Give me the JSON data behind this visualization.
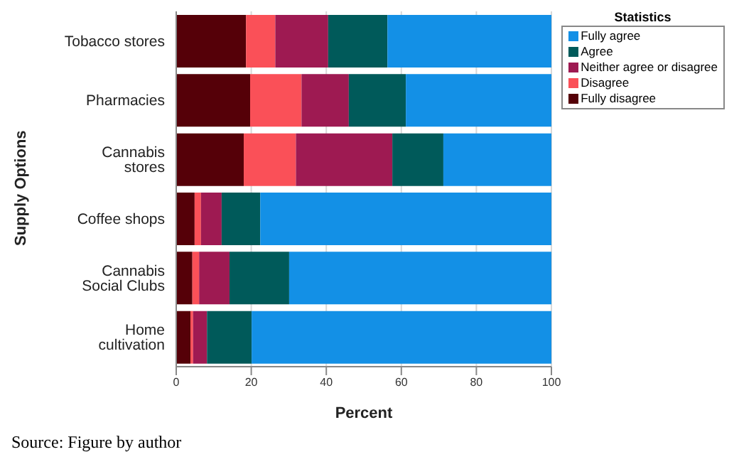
{
  "chart_data": {
    "type": "bar",
    "orientation": "horizontal",
    "stacked": true,
    "categories": [
      "Tobacco stores",
      "Pharmacies",
      "Cannabis stores",
      "Coffee shops",
      "Cannabis Social Clubs",
      "Home cultivation"
    ],
    "series": [
      {
        "name": "Fully disagree",
        "color": "#550008",
        "values": [
          18.6,
          19.7,
          18.0,
          4.9,
          4.3,
          3.8
        ]
      },
      {
        "name": "Disagree",
        "color": "#fa5058",
        "values": [
          7.8,
          13.7,
          13.9,
          1.7,
          1.8,
          0.7
        ]
      },
      {
        "name": "Neither agree or disagree",
        "color": "#9e1a52",
        "values": [
          14.1,
          12.6,
          25.7,
          5.5,
          8.1,
          3.7
        ]
      },
      {
        "name": "Agree",
        "color": "#005a5a",
        "values": [
          15.8,
          15.2,
          13.6,
          10.3,
          15.9,
          11.9
        ]
      },
      {
        "name": "Fully agree",
        "color": "#1390e6",
        "values": [
          43.7,
          38.8,
          28.8,
          77.6,
          69.9,
          79.9
        ]
      }
    ],
    "xlim": [
      0,
      100
    ],
    "xticks": [
      0,
      20,
      40,
      60,
      80,
      100
    ],
    "xlabel": "Percent",
    "ylabel": "Supply Options",
    "legend_title": "Statistics",
    "legend": "top right",
    "grid": "x",
    "annotations": [
      "Source: Figure by author"
    ]
  }
}
